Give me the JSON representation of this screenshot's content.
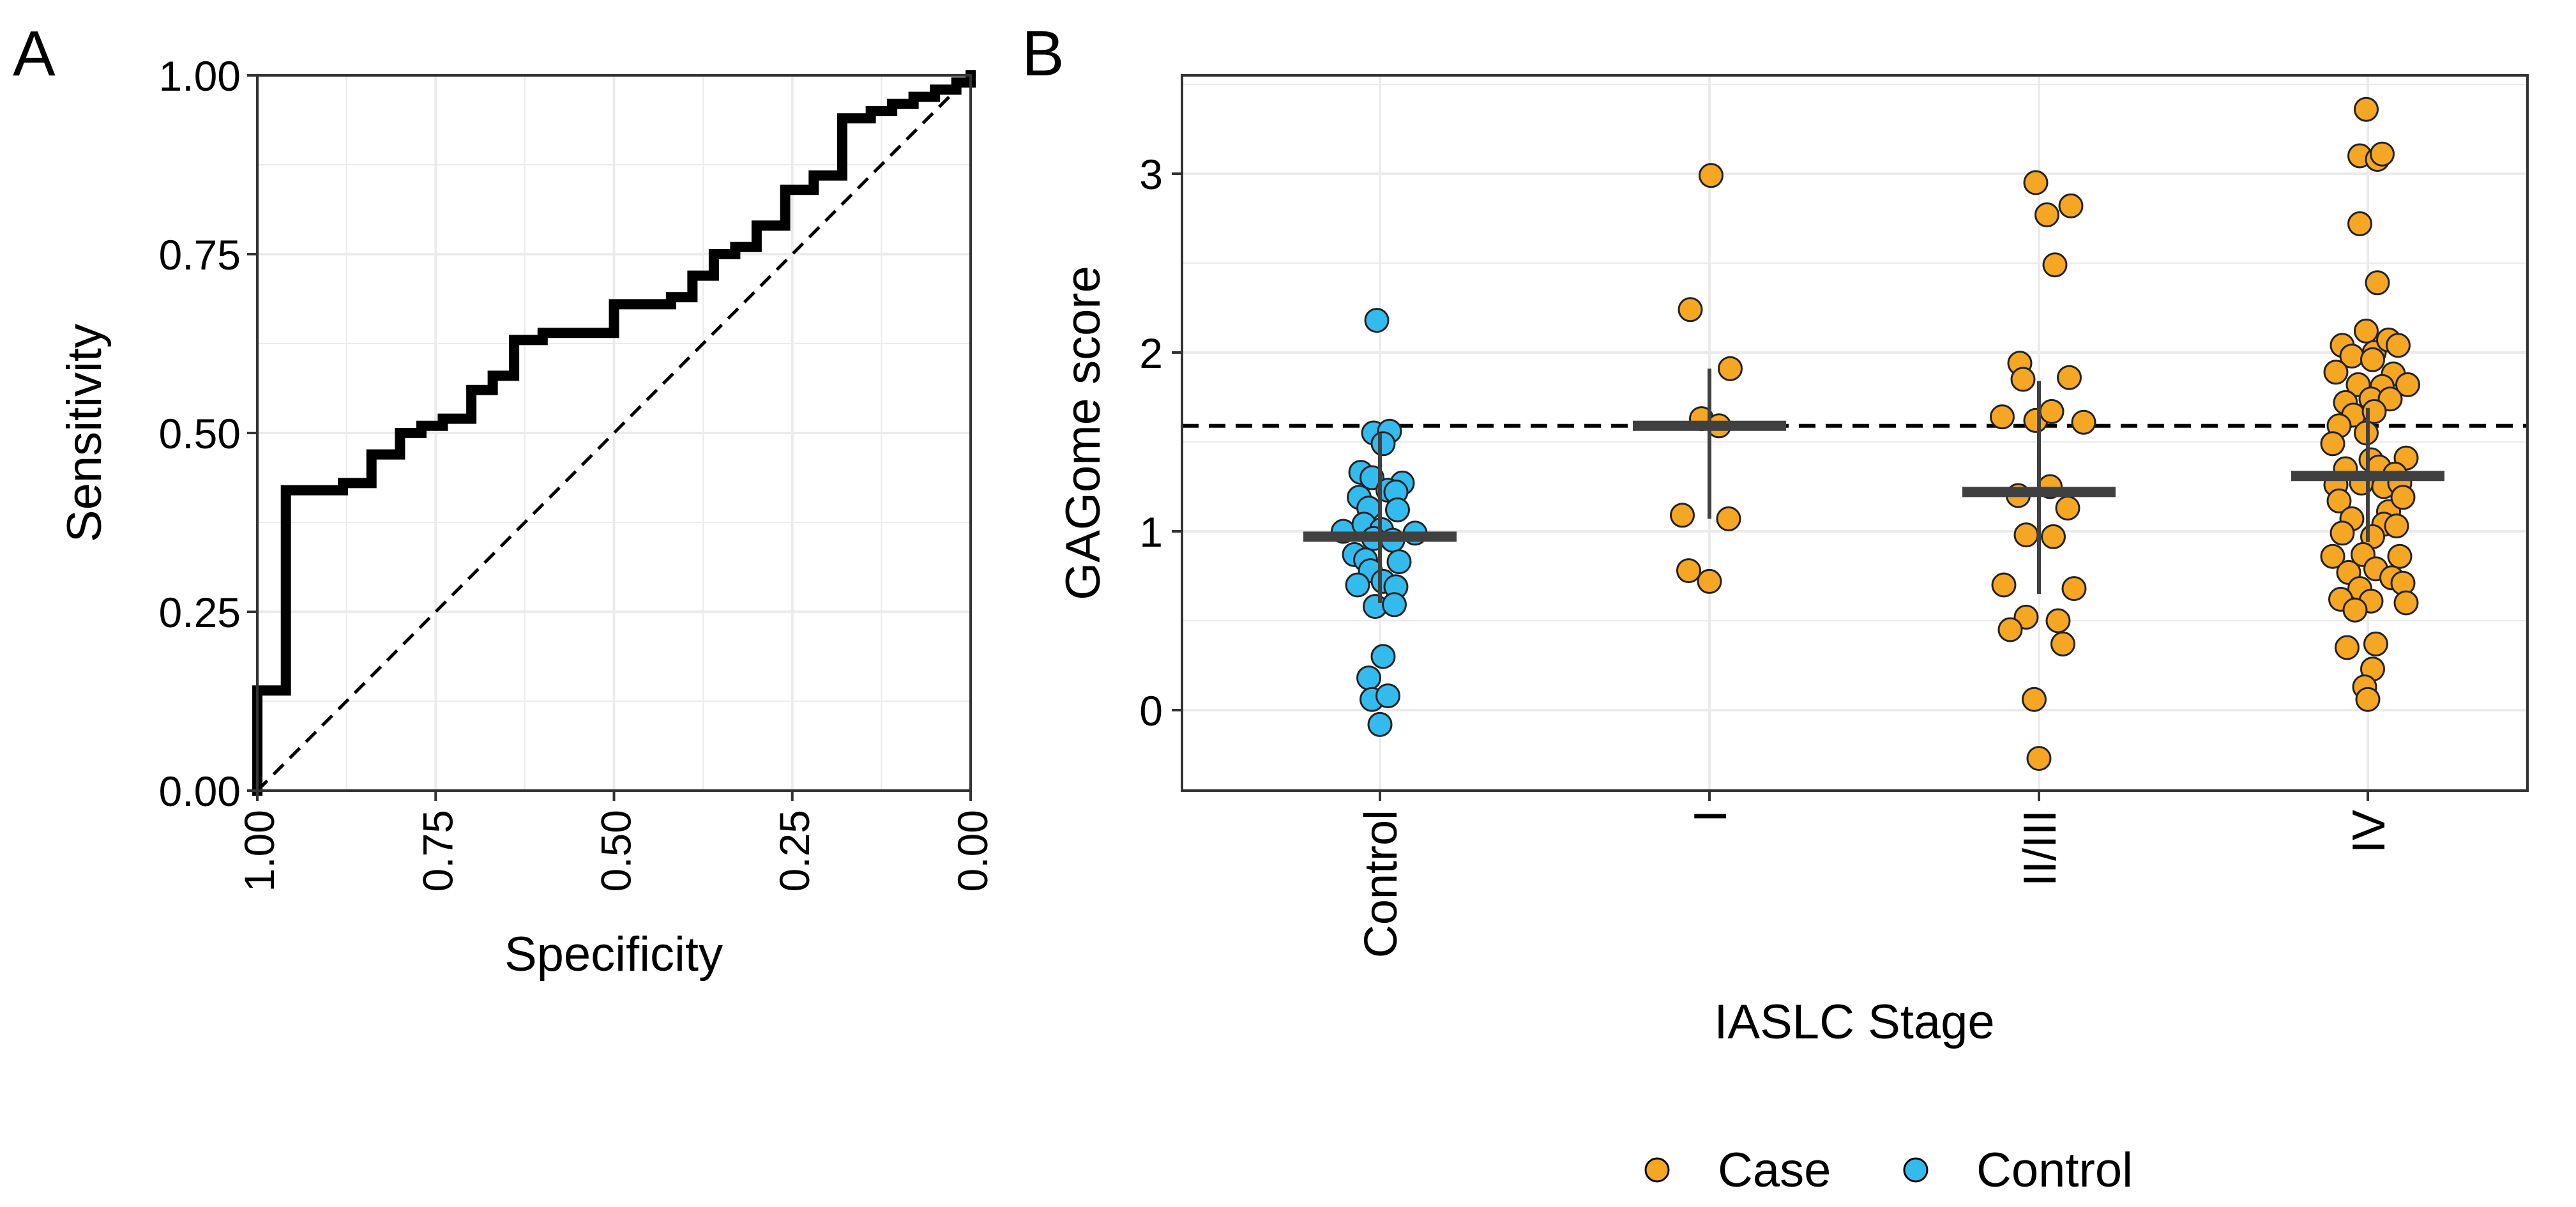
{
  "panel_labels": {
    "a": "A",
    "b": "B"
  },
  "colors": {
    "case": "#F5A623",
    "control": "#33BBEE",
    "curve": "#000000",
    "summary": "#404040",
    "grid": "#EBEBEB"
  },
  "chart_data": [
    {
      "panel": "A",
      "type": "line",
      "title": "",
      "xlabel": "Specificity",
      "ylabel": "Sensitivity",
      "xlim": [
        1.0,
        0.0
      ],
      "ylim": [
        0.0,
        1.0
      ],
      "x_reversed": true,
      "xticks": [
        "1.00",
        "0.75",
        "0.50",
        "0.25",
        "0.00"
      ],
      "yticks": [
        "0.00",
        "0.25",
        "0.50",
        "0.75",
        "1.00"
      ],
      "grid": true,
      "series": [
        {
          "name": "ROC",
          "style": "solid-step",
          "points": [
            [
              1.0,
              0.0
            ],
            [
              1.0,
              0.14
            ],
            [
              0.96,
              0.14
            ],
            [
              0.96,
              0.42
            ],
            [
              0.88,
              0.42
            ],
            [
              0.88,
              0.43
            ],
            [
              0.84,
              0.43
            ],
            [
              0.84,
              0.47
            ],
            [
              0.8,
              0.47
            ],
            [
              0.8,
              0.5
            ],
            [
              0.77,
              0.5
            ],
            [
              0.77,
              0.51
            ],
            [
              0.74,
              0.51
            ],
            [
              0.74,
              0.52
            ],
            [
              0.7,
              0.52
            ],
            [
              0.7,
              0.56
            ],
            [
              0.67,
              0.56
            ],
            [
              0.67,
              0.58
            ],
            [
              0.64,
              0.58
            ],
            [
              0.64,
              0.63
            ],
            [
              0.6,
              0.63
            ],
            [
              0.6,
              0.64
            ],
            [
              0.5,
              0.64
            ],
            [
              0.5,
              0.68
            ],
            [
              0.42,
              0.68
            ],
            [
              0.42,
              0.69
            ],
            [
              0.39,
              0.69
            ],
            [
              0.39,
              0.72
            ],
            [
              0.36,
              0.72
            ],
            [
              0.36,
              0.75
            ],
            [
              0.33,
              0.75
            ],
            [
              0.33,
              0.76
            ],
            [
              0.3,
              0.76
            ],
            [
              0.3,
              0.79
            ],
            [
              0.26,
              0.79
            ],
            [
              0.26,
              0.84
            ],
            [
              0.22,
              0.84
            ],
            [
              0.22,
              0.86
            ],
            [
              0.18,
              0.86
            ],
            [
              0.18,
              0.94
            ],
            [
              0.14,
              0.94
            ],
            [
              0.14,
              0.95
            ],
            [
              0.11,
              0.95
            ],
            [
              0.11,
              0.96
            ],
            [
              0.08,
              0.96
            ],
            [
              0.08,
              0.97
            ],
            [
              0.05,
              0.97
            ],
            [
              0.05,
              0.98
            ],
            [
              0.02,
              0.98
            ],
            [
              0.02,
              0.99
            ],
            [
              0.0,
              0.99
            ],
            [
              0.0,
              1.0
            ]
          ]
        },
        {
          "name": "chance",
          "style": "dashed",
          "points": [
            [
              1.0,
              0.0
            ],
            [
              0.0,
              1.0
            ]
          ]
        }
      ]
    },
    {
      "panel": "B",
      "type": "scatter",
      "title": "",
      "xlabel": "IASLC Stage",
      "ylabel": "GAGome score",
      "categories": [
        "Control",
        "I",
        "II/III",
        "IV"
      ],
      "ylim": [
        -0.45,
        3.55
      ],
      "yticks": [
        "0",
        "1",
        "2",
        "3"
      ],
      "grid": true,
      "threshold": 1.59,
      "legend": {
        "position": "bottom",
        "entries": [
          "Case",
          "Control"
        ]
      },
      "summaries": [
        {
          "category": "Control",
          "mean": 0.97,
          "low": 0.6,
          "high": 1.55
        },
        {
          "category": "I",
          "mean": 1.59,
          "low": 1.07,
          "high": 1.91
        },
        {
          "category": "II/III",
          "mean": 1.22,
          "low": 0.65,
          "high": 1.84
        },
        {
          "category": "IV",
          "mean": 1.31,
          "low": 0.94,
          "high": 1.69
        }
      ],
      "series": [
        {
          "name": "Control",
          "category": "Control",
          "points": [
            {
              "dx": -0.02,
              "y": 2.18
            },
            {
              "dx": -0.04,
              "y": 1.55
            },
            {
              "dx": 0.06,
              "y": 1.56
            },
            {
              "dx": 0.02,
              "y": 1.49
            },
            {
              "dx": -0.12,
              "y": 1.33
            },
            {
              "dx": -0.05,
              "y": 1.3
            },
            {
              "dx": 0.14,
              "y": 1.27
            },
            {
              "dx": -0.13,
              "y": 1.19
            },
            {
              "dx": 0.05,
              "y": 1.23
            },
            {
              "dx": 0.1,
              "y": 1.22
            },
            {
              "dx": -0.07,
              "y": 1.13
            },
            {
              "dx": 0.11,
              "y": 1.12
            },
            {
              "dx": -0.23,
              "y": 1.0
            },
            {
              "dx": -0.1,
              "y": 1.04
            },
            {
              "dx": 0.01,
              "y": 1.01
            },
            {
              "dx": 0.22,
              "y": 0.99
            },
            {
              "dx": -0.04,
              "y": 0.96
            },
            {
              "dx": 0.08,
              "y": 0.95
            },
            {
              "dx": -0.16,
              "y": 0.87
            },
            {
              "dx": -0.09,
              "y": 0.84
            },
            {
              "dx": 0.12,
              "y": 0.83
            },
            {
              "dx": -0.06,
              "y": 0.78
            },
            {
              "dx": -0.14,
              "y": 0.7
            },
            {
              "dx": 0.02,
              "y": 0.72
            },
            {
              "dx": 0.1,
              "y": 0.69
            },
            {
              "dx": -0.03,
              "y": 0.58
            },
            {
              "dx": 0.09,
              "y": 0.59
            },
            {
              "dx": 0.02,
              "y": 0.3
            },
            {
              "dx": -0.07,
              "y": 0.18
            },
            {
              "dx": -0.05,
              "y": 0.06
            },
            {
              "dx": 0.05,
              "y": 0.08
            },
            {
              "dx": 0.0,
              "y": -0.08
            }
          ]
        },
        {
          "name": "Case",
          "category": "I",
          "points": [
            {
              "dx": 0.01,
              "y": 2.99
            },
            {
              "dx": -0.12,
              "y": 2.24
            },
            {
              "dx": 0.13,
              "y": 1.91
            },
            {
              "dx": -0.05,
              "y": 1.63
            },
            {
              "dx": 0.06,
              "y": 1.59
            },
            {
              "dx": -0.17,
              "y": 1.09
            },
            {
              "dx": 0.12,
              "y": 1.07
            },
            {
              "dx": -0.13,
              "y": 0.78
            },
            {
              "dx": 0.0,
              "y": 0.72
            }
          ]
        },
        {
          "name": "Case",
          "category": "II/III",
          "points": [
            {
              "dx": -0.02,
              "y": 2.95
            },
            {
              "dx": 0.05,
              "y": 2.77
            },
            {
              "dx": 0.2,
              "y": 2.82
            },
            {
              "dx": 0.1,
              "y": 2.49
            },
            {
              "dx": -0.12,
              "y": 1.94
            },
            {
              "dx": -0.1,
              "y": 1.85
            },
            {
              "dx": 0.19,
              "y": 1.86
            },
            {
              "dx": -0.02,
              "y": 1.62
            },
            {
              "dx": 0.08,
              "y": 1.67
            },
            {
              "dx": -0.23,
              "y": 1.64
            },
            {
              "dx": 0.28,
              "y": 1.61
            },
            {
              "dx": 0.07,
              "y": 1.25
            },
            {
              "dx": -0.13,
              "y": 1.2
            },
            {
              "dx": 0.18,
              "y": 1.13
            },
            {
              "dx": -0.08,
              "y": 0.98
            },
            {
              "dx": 0.09,
              "y": 0.97
            },
            {
              "dx": -0.22,
              "y": 0.7
            },
            {
              "dx": 0.22,
              "y": 0.68
            },
            {
              "dx": -0.08,
              "y": 0.52
            },
            {
              "dx": 0.12,
              "y": 0.5
            },
            {
              "dx": -0.18,
              "y": 0.45
            },
            {
              "dx": 0.15,
              "y": 0.37
            },
            {
              "dx": -0.03,
              "y": 0.06
            },
            {
              "dx": 0.0,
              "y": -0.27
            }
          ]
        },
        {
          "name": "Case",
          "category": "IV",
          "points": [
            {
              "dx": -0.01,
              "y": 3.36
            },
            {
              "dx": -0.05,
              "y": 3.1
            },
            {
              "dx": 0.06,
              "y": 3.08
            },
            {
              "dx": 0.09,
              "y": 3.11
            },
            {
              "dx": -0.05,
              "y": 2.72
            },
            {
              "dx": 0.06,
              "y": 2.39
            },
            {
              "dx": -0.16,
              "y": 2.04
            },
            {
              "dx": -0.01,
              "y": 2.12
            },
            {
              "dx": 0.04,
              "y": 2.0
            },
            {
              "dx": 0.13,
              "y": 2.07
            },
            {
              "dx": 0.19,
              "y": 2.04
            },
            {
              "dx": -0.1,
              "y": 1.98
            },
            {
              "dx": -0.2,
              "y": 1.89
            },
            {
              "dx": 0.03,
              "y": 1.96
            },
            {
              "dx": 0.16,
              "y": 1.88
            },
            {
              "dx": -0.06,
              "y": 1.82
            },
            {
              "dx": 0.09,
              "y": 1.81
            },
            {
              "dx": 0.25,
              "y": 1.82
            },
            {
              "dx": -0.14,
              "y": 1.72
            },
            {
              "dx": 0.02,
              "y": 1.74
            },
            {
              "dx": 0.14,
              "y": 1.74
            },
            {
              "dx": -0.09,
              "y": 1.65
            },
            {
              "dx": 0.04,
              "y": 1.67
            },
            {
              "dx": -0.18,
              "y": 1.59
            },
            {
              "dx": -0.01,
              "y": 1.55
            },
            {
              "dx": -0.22,
              "y": 1.49
            },
            {
              "dx": 0.02,
              "y": 1.4
            },
            {
              "dx": 0.24,
              "y": 1.41
            },
            {
              "dx": -0.14,
              "y": 1.35
            },
            {
              "dx": 0.07,
              "y": 1.36
            },
            {
              "dx": 0.17,
              "y": 1.32
            },
            {
              "dx": -0.2,
              "y": 1.26
            },
            {
              "dx": -0.04,
              "y": 1.27
            },
            {
              "dx": 0.1,
              "y": 1.25
            },
            {
              "dx": 0.2,
              "y": 1.27
            },
            {
              "dx": -0.18,
              "y": 1.17
            },
            {
              "dx": 0.13,
              "y": 1.11
            },
            {
              "dx": 0.22,
              "y": 1.19
            },
            {
              "dx": -0.1,
              "y": 1.07
            },
            {
              "dx": 0.1,
              "y": 1.04
            },
            {
              "dx": 0.18,
              "y": 1.03
            },
            {
              "dx": -0.16,
              "y": 0.99
            },
            {
              "dx": 0.03,
              "y": 0.97
            },
            {
              "dx": -0.22,
              "y": 0.86
            },
            {
              "dx": -0.03,
              "y": 0.87
            },
            {
              "dx": 0.2,
              "y": 0.86
            },
            {
              "dx": -0.12,
              "y": 0.77
            },
            {
              "dx": 0.05,
              "y": 0.79
            },
            {
              "dx": 0.15,
              "y": 0.74
            },
            {
              "dx": -0.05,
              "y": 0.68
            },
            {
              "dx": 0.22,
              "y": 0.71
            },
            {
              "dx": -0.17,
              "y": 0.62
            },
            {
              "dx": 0.02,
              "y": 0.61
            },
            {
              "dx": 0.24,
              "y": 0.6
            },
            {
              "dx": -0.08,
              "y": 0.56
            },
            {
              "dx": 0.05,
              "y": 0.37
            },
            {
              "dx": -0.13,
              "y": 0.35
            },
            {
              "dx": 0.03,
              "y": 0.23
            },
            {
              "dx": -0.02,
              "y": 0.13
            },
            {
              "dx": 0.0,
              "y": 0.06
            }
          ]
        }
      ]
    }
  ]
}
